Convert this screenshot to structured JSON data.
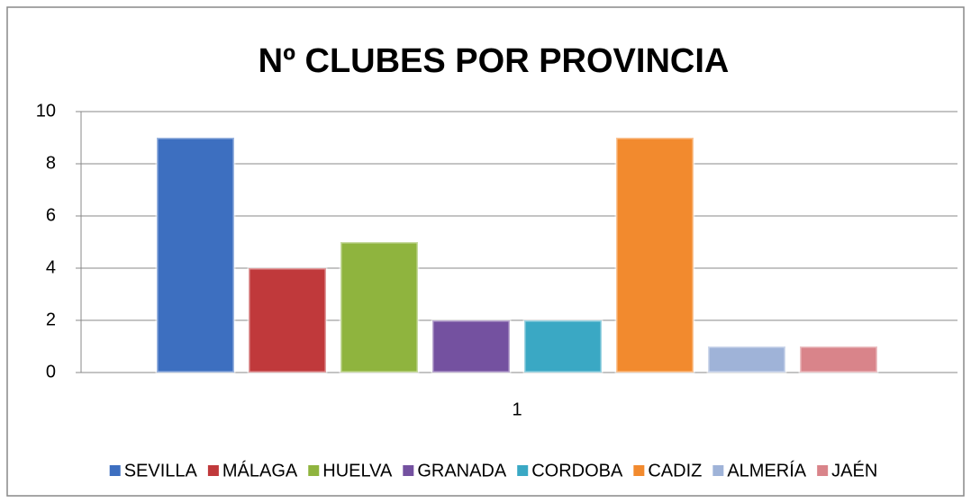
{
  "chart_data": {
    "type": "bar",
    "title": "Nº CLUBES POR PROVINCIA",
    "categories": [
      "1"
    ],
    "series": [
      {
        "name": "SEVILLA",
        "color": "#3d6fc0",
        "values": [
          9
        ]
      },
      {
        "name": "MÁLAGA",
        "color": "#c0393b",
        "values": [
          4
        ]
      },
      {
        "name": "HUELVA",
        "color": "#8fb43e",
        "values": [
          5
        ]
      },
      {
        "name": "GRANADA",
        "color": "#7451a0",
        "values": [
          2
        ]
      },
      {
        "name": "CORDOBA",
        "color": "#3aa8c4",
        "values": [
          2
        ]
      },
      {
        "name": "CADIZ",
        "color": "#f28a2e",
        "values": [
          9
        ]
      },
      {
        "name": "ALMERÍA",
        "color": "#9fb3d8",
        "values": [
          1
        ]
      },
      {
        "name": "JAÉN",
        "color": "#d9848a",
        "values": [
          1
        ]
      }
    ],
    "ylim": [
      0,
      10
    ],
    "yticks": [
      0,
      2,
      4,
      6,
      8,
      10
    ],
    "grid": true,
    "legend": "bottom"
  }
}
